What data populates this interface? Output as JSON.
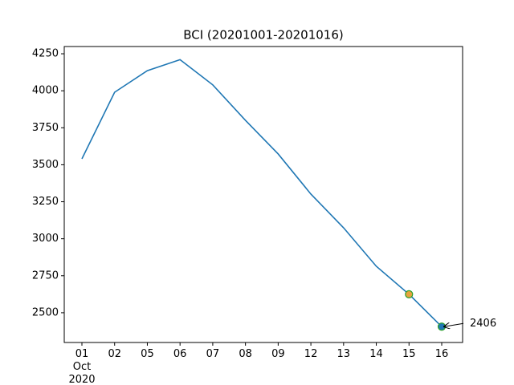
{
  "chart_data": {
    "type": "line",
    "title": "BCI (20201001-20201016)",
    "categories": [
      "01\nOct\n2020",
      "02",
      "05",
      "06",
      "07",
      "08",
      "09",
      "12",
      "13",
      "14",
      "15",
      "16"
    ],
    "series": [
      {
        "color": "#1f77b4",
        "values": [
          3540,
          3990,
          4136,
          4210,
          4040,
          3800,
          3573,
          3302,
          3074,
          2814,
          2625,
          2406
        ],
        "marker_colors": [
          null,
          null,
          null,
          null,
          null,
          null,
          null,
          null,
          null,
          null,
          "#e8a33d",
          "#1f77b4"
        ],
        "marker_edge_color": "#2ca02c"
      }
    ],
    "ylim": [
      2299,
      4299
    ],
    "yticks": [
      2500,
      2750,
      3000,
      3250,
      3500,
      3750,
      4000,
      4250
    ],
    "annotate_last": true
  }
}
